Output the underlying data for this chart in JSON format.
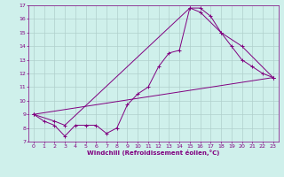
{
  "xlabel": "Windchill (Refroidissement éolien,°C)",
  "background_color": "#cff0eb",
  "line_color": "#800080",
  "grid_color": "#b0d0cc",
  "xlim": [
    -0.5,
    23.5
  ],
  "ylim": [
    7,
    17
  ],
  "yticks": [
    7,
    8,
    9,
    10,
    11,
    12,
    13,
    14,
    15,
    16,
    17
  ],
  "xticks": [
    0,
    1,
    2,
    3,
    4,
    5,
    6,
    7,
    8,
    9,
    10,
    11,
    12,
    13,
    14,
    15,
    16,
    17,
    18,
    19,
    20,
    21,
    22,
    23
  ],
  "line1_x": [
    0,
    1,
    2,
    3,
    4,
    5,
    6,
    7,
    8,
    9,
    10,
    11,
    12,
    13,
    14,
    15,
    16,
    17,
    18,
    19,
    20,
    21,
    22,
    23
  ],
  "line1_y": [
    9.0,
    8.5,
    8.2,
    7.4,
    8.2,
    8.2,
    8.2,
    7.6,
    8.0,
    9.7,
    10.5,
    11.0,
    12.5,
    13.5,
    13.7,
    16.8,
    16.8,
    16.2,
    15.0,
    14.0,
    13.0,
    12.5,
    12.0,
    11.7
  ],
  "line2_x": [
    0,
    2,
    3,
    15,
    16,
    18,
    20,
    23
  ],
  "line2_y": [
    9.0,
    8.5,
    8.2,
    16.8,
    16.5,
    15.0,
    14.0,
    11.7
  ],
  "line3_x": [
    0,
    23
  ],
  "line3_y": [
    9.0,
    11.7
  ],
  "tick_fontsize": 4.5,
  "xlabel_fontsize": 5.0
}
